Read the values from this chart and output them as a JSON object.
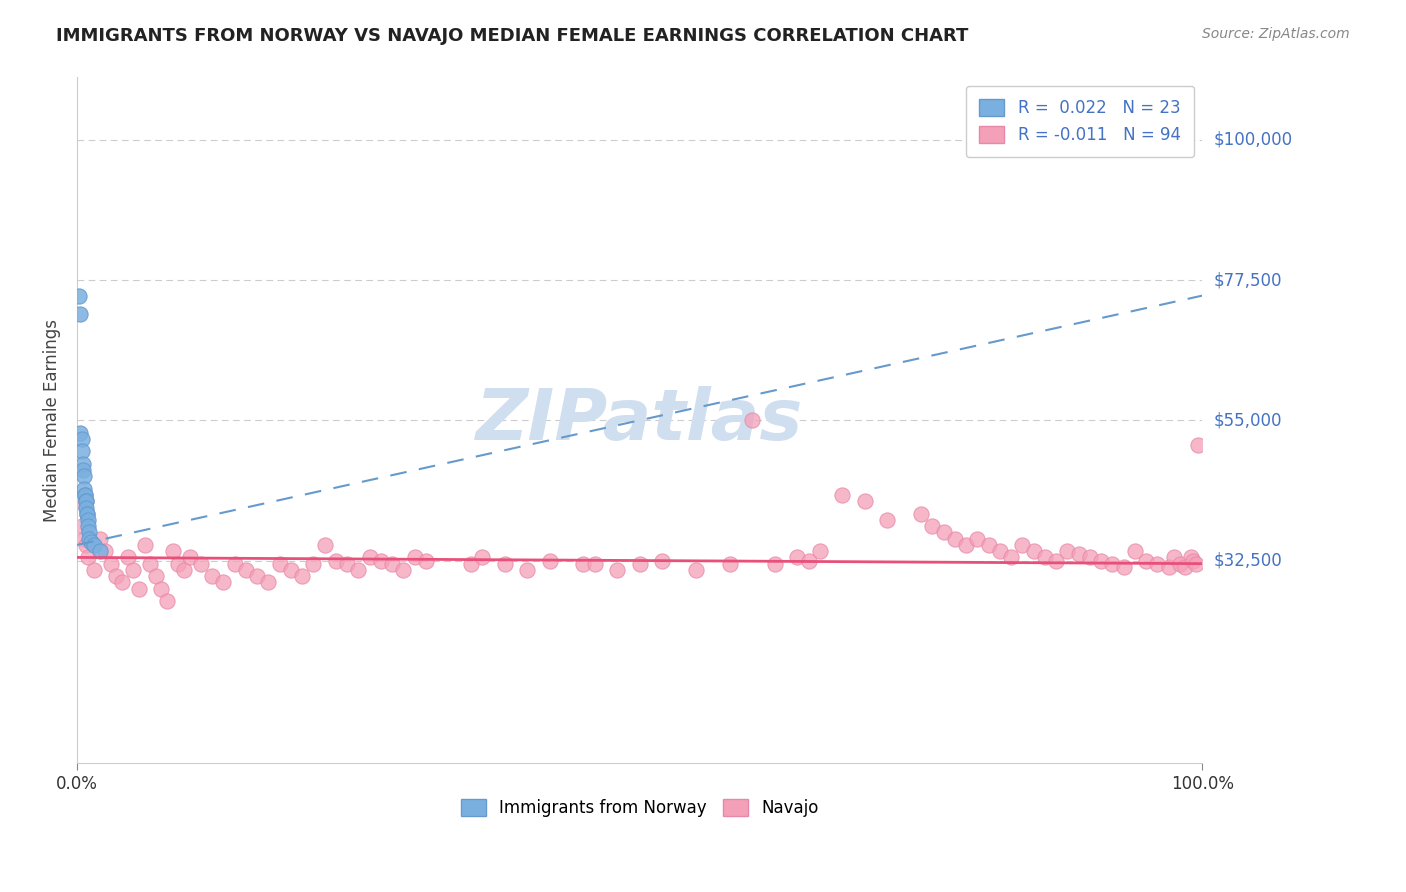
{
  "title": "IMMIGRANTS FROM NORWAY VS NAVAJO MEDIAN FEMALE EARNINGS CORRELATION CHART",
  "source_text": "Source: ZipAtlas.com",
  "xlabel": "",
  "ylabel": "Median Female Earnings",
  "xlim": [
    0.0,
    1.0
  ],
  "ylim": [
    0,
    110000
  ],
  "yticks": [
    0,
    32500,
    55000,
    77500,
    100000
  ],
  "ytick_labels": [
    "",
    "$32,500",
    "$55,000",
    "$77,500",
    "$100,000"
  ],
  "xtick_labels": [
    "0.0%",
    "100.0%"
  ],
  "legend_r_norway": "R =  0.022",
  "legend_n_norway": "N = 23",
  "legend_r_navajo": "R = -0.011",
  "legend_n_navajo": "N = 94",
  "color_norway": "#7ab0e0",
  "color_navajo": "#f4a0b8",
  "trendline_norway_color": "#6699cc",
  "trendline_navajo_color": "#e8507a",
  "background_color": "#ffffff",
  "title_color": "#222222",
  "axis_label_color": "#444444",
  "ytick_color": "#4472c4",
  "watermark_color": "#d0dff0",
  "norway_scatter_x": [
    0.002,
    0.003,
    0.003,
    0.004,
    0.004,
    0.005,
    0.005,
    0.006,
    0.006,
    0.007,
    0.007,
    0.008,
    0.008,
    0.008,
    0.009,
    0.009,
    0.01,
    0.01,
    0.011,
    0.011,
    0.012,
    0.015,
    0.02
  ],
  "norway_scatter_y": [
    75000,
    72000,
    53000,
    52000,
    50000,
    48000,
    47000,
    46000,
    44000,
    43000,
    43000,
    42000,
    42000,
    41000,
    40000,
    40000,
    39000,
    38000,
    37000,
    36000,
    35500,
    35000,
    34000
  ],
  "navajo_scatter_x": [
    0.002,
    0.004,
    0.006,
    0.008,
    0.01,
    0.015,
    0.02,
    0.025,
    0.03,
    0.035,
    0.04,
    0.045,
    0.05,
    0.055,
    0.06,
    0.065,
    0.07,
    0.075,
    0.08,
    0.085,
    0.09,
    0.095,
    0.1,
    0.11,
    0.12,
    0.13,
    0.14,
    0.15,
    0.16,
    0.17,
    0.18,
    0.19,
    0.2,
    0.21,
    0.22,
    0.23,
    0.24,
    0.25,
    0.26,
    0.27,
    0.28,
    0.29,
    0.3,
    0.31,
    0.35,
    0.36,
    0.38,
    0.4,
    0.42,
    0.45,
    0.46,
    0.48,
    0.5,
    0.52,
    0.55,
    0.58,
    0.6,
    0.62,
    0.64,
    0.65,
    0.66,
    0.68,
    0.7,
    0.72,
    0.75,
    0.76,
    0.77,
    0.78,
    0.79,
    0.8,
    0.81,
    0.82,
    0.83,
    0.84,
    0.85,
    0.86,
    0.87,
    0.88,
    0.89,
    0.9,
    0.91,
    0.92,
    0.93,
    0.94,
    0.95,
    0.96,
    0.97,
    0.975,
    0.98,
    0.985,
    0.99,
    0.992,
    0.994,
    0.996
  ],
  "navajo_scatter_y": [
    42000,
    38000,
    36000,
    35000,
    33000,
    31000,
    36000,
    34000,
    32000,
    30000,
    29000,
    33000,
    31000,
    28000,
    35000,
    32000,
    30000,
    28000,
    26000,
    34000,
    32000,
    31000,
    33000,
    32000,
    30000,
    29000,
    32000,
    31000,
    30000,
    29000,
    32000,
    31000,
    30000,
    32000,
    35000,
    32500,
    32000,
    31000,
    33000,
    32500,
    32000,
    31000,
    33000,
    32500,
    32000,
    33000,
    32000,
    31000,
    32500,
    32000,
    32000,
    31000,
    32000,
    32500,
    31000,
    32000,
    55000,
    32000,
    33000,
    32500,
    34000,
    43000,
    42000,
    39000,
    40000,
    38000,
    37000,
    36000,
    35000,
    36000,
    35000,
    34000,
    33000,
    35000,
    34000,
    33000,
    32500,
    34000,
    33500,
    33000,
    32500,
    32000,
    31500,
    34000,
    32500,
    32000,
    31500,
    33000,
    32000,
    31500,
    33000,
    32500,
    32000,
    51000
  ]
}
